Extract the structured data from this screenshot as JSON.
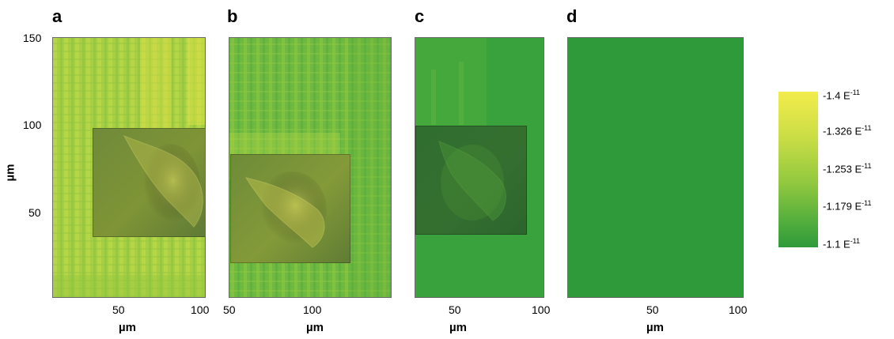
{
  "panels": [
    {
      "letter": "a",
      "x_ticks": [
        "50",
        "100"
      ],
      "x_label": "µm"
    },
    {
      "letter": "b",
      "x_ticks": [
        "50",
        "100"
      ],
      "x_label": "µm"
    },
    {
      "letter": "c",
      "x_ticks": [
        "50",
        "100"
      ],
      "x_label": "µm"
    },
    {
      "letter": "d",
      "x_ticks": [
        "50",
        "100"
      ],
      "x_label": "µm"
    }
  ],
  "y_axis": {
    "label": "µm",
    "ticks": [
      "150",
      "100",
      "50"
    ]
  },
  "colorbar": {
    "labels": [
      {
        "value": "-1.4 E",
        "exp": "-11"
      },
      {
        "value": "-1.326 E",
        "exp": "-11"
      },
      {
        "value": "-1.253 E",
        "exp": "-11"
      },
      {
        "value": "-1.179 E",
        "exp": "-11"
      },
      {
        "value": "-1.1 E",
        "exp": "-11"
      }
    ],
    "color_high": "#f0ea4a",
    "color_low": "#2f9a3a"
  },
  "chart_data": [
    {
      "type": "heatmap",
      "panel": "a",
      "xlim": [
        10,
        100
      ],
      "ylim": [
        0,
        150
      ],
      "xticks": [
        50,
        100
      ],
      "yticks": [
        50,
        100,
        150
      ],
      "xlabel": "µm",
      "ylabel": "µm",
      "has_cell_image_overlay": true
    },
    {
      "type": "heatmap",
      "panel": "b",
      "xlim": [
        50,
        150
      ],
      "ylim": [
        0,
        150
      ],
      "xticks": [
        50,
        100
      ],
      "xlabel": "µm",
      "has_cell_image_overlay": true
    },
    {
      "type": "heatmap",
      "panel": "c",
      "xlim": [
        25,
        100
      ],
      "ylim": [
        0,
        150
      ],
      "xticks": [
        50,
        100
      ],
      "xlabel": "µm",
      "has_cell_image_overlay": true
    },
    {
      "type": "heatmap",
      "panel": "d",
      "xlim": [
        0,
        100
      ],
      "ylim": [
        0,
        150
      ],
      "xticks": [
        50,
        100
      ],
      "xlabel": "µm",
      "has_cell_image_overlay": false
    },
    {
      "type": "colorbar",
      "range": [
        -1.4e-11,
        -1.1e-11
      ],
      "tick_values": [
        -1.4e-11,
        -1.326e-11,
        -1.253e-11,
        -1.179e-11,
        -1.1e-11
      ]
    }
  ]
}
